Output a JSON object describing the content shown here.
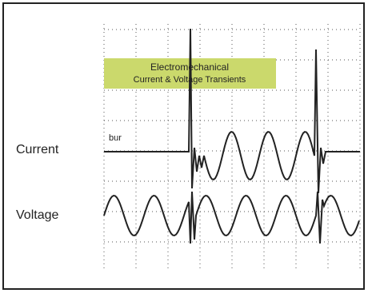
{
  "annotation": {
    "line1": "Electromechanical",
    "line2": "Current & Voltage Transients"
  },
  "labels": {
    "current": "Current",
    "voltage": "Voltage",
    "marker": "bur"
  }
}
